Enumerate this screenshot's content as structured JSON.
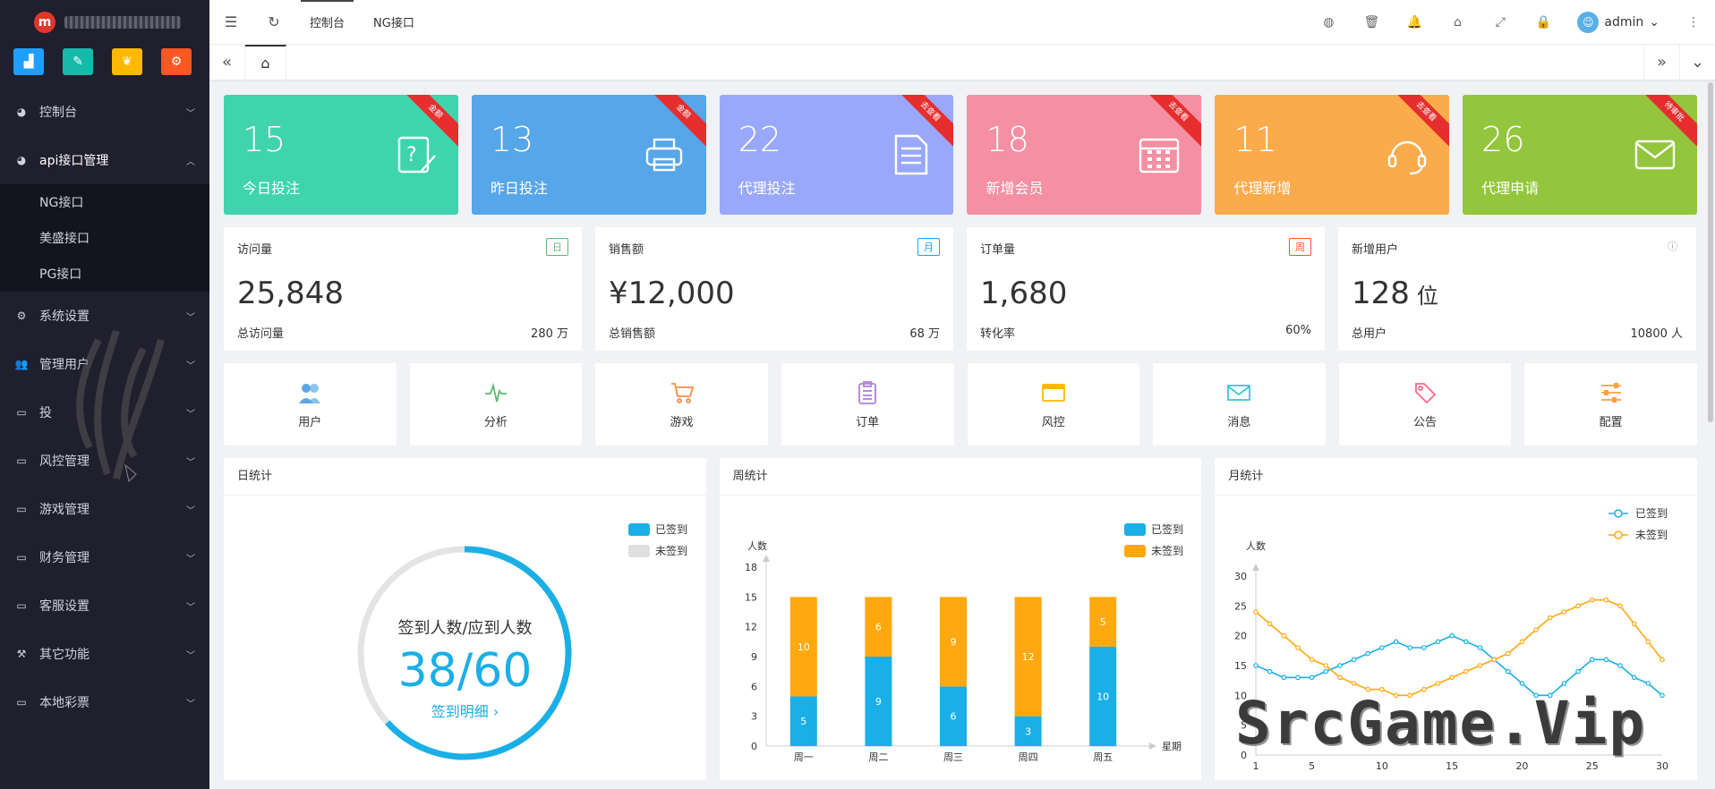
{
  "app": {
    "logo_letter": "m",
    "watermark": "SrcGame.Vip"
  },
  "quick_buttons": [
    {
      "icon": "chart-icon",
      "color": "#1e9fff"
    },
    {
      "icon": "edit-icon",
      "color": "#16baaa"
    },
    {
      "icon": "bear-icon",
      "color": "#ffb800"
    },
    {
      "icon": "settings-icon",
      "color": "#ff5722"
    }
  ],
  "sidebar": {
    "items": [
      {
        "label": "控制台",
        "icon": "dashboard-icon"
      },
      {
        "label": "api接口管理",
        "icon": "dashboard-icon",
        "open": true,
        "children": [
          "NG接口",
          "美盛接口",
          "PG接口"
        ]
      },
      {
        "label": "系统设置",
        "icon": "gear-icon"
      },
      {
        "label": "管理用户",
        "icon": "users-icon"
      },
      {
        "label": "投",
        "icon": "monitor-icon"
      },
      {
        "label": "风控管理",
        "icon": "monitor-icon"
      },
      {
        "label": "游戏管理",
        "icon": "monitor-icon"
      },
      {
        "label": "财务管理",
        "icon": "monitor-icon"
      },
      {
        "label": "客服设置",
        "icon": "monitor-icon"
      },
      {
        "label": "其它功能",
        "icon": "hammer-icon"
      },
      {
        "label": "本地彩票",
        "icon": "monitor-icon"
      }
    ]
  },
  "header": {
    "nav": [
      "控制台",
      "NG接口"
    ],
    "user": "admin"
  },
  "stats": [
    {
      "value": "15",
      "label": "今日投注",
      "ribbon": "金额",
      "color": "#3fd4ae"
    },
    {
      "value": "13",
      "label": "昨日投注",
      "ribbon": "金额",
      "color": "#56a6ea"
    },
    {
      "value": "22",
      "label": "代理投注",
      "ribbon": "去查看",
      "color": "#9aa8fb"
    },
    {
      "value": "18",
      "label": "新增会员",
      "ribbon": "去查看",
      "color": "#f58fa3"
    },
    {
      "value": "11",
      "label": "代理新增",
      "ribbon": "去查看",
      "color": "#fcab4c"
    },
    {
      "value": "26",
      "label": "代理申请",
      "ribbon": "待审批",
      "color": "#93c63c"
    }
  ],
  "metrics": [
    {
      "title": "访问量",
      "tag": "日",
      "tag_color": "#5fb878",
      "value": "25,848",
      "unit": "",
      "left": "总访问量",
      "right": "280 万"
    },
    {
      "title": "销售额",
      "tag": "月",
      "tag_color": "#1e9fff",
      "value": "¥12,000",
      "unit": "",
      "left": "总销售额",
      "right": "68 万"
    },
    {
      "title": "订单量",
      "tag": "周",
      "tag_color": "#ff5722",
      "value": "1,680",
      "unit": "",
      "left": "转化率",
      "right": "60%"
    },
    {
      "title": "新增用户",
      "tag": "ⓘ",
      "tag_color": "#999999",
      "value": "128",
      "unit": "位",
      "left": "总用户",
      "right": "10800 人"
    }
  ],
  "shortcuts": [
    {
      "label": "用户",
      "icon": "users-icon",
      "color": "#5aa9e6"
    },
    {
      "label": "分析",
      "icon": "pulse-icon",
      "color": "#5fb878"
    },
    {
      "label": "游戏",
      "icon": "cart-icon",
      "color": "#ff8a48"
    },
    {
      "label": "订单",
      "icon": "clipboard-icon",
      "color": "#b07fe0"
    },
    {
      "label": "风控",
      "icon": "card-icon",
      "color": "#ffb800"
    },
    {
      "label": "消息",
      "icon": "mail-icon",
      "color": "#3cc6d8"
    },
    {
      "label": "公告",
      "icon": "tag-icon",
      "color": "#f06b8a"
    },
    {
      "label": "配置",
      "icon": "sliders-icon",
      "color": "#ff9f43"
    }
  ],
  "daily": {
    "title": "日统计",
    "legend": [
      "已签到",
      "未签到"
    ],
    "ring_caption": "签到人数/应到人数",
    "ring_value": "38/60",
    "ring_link": "签到明细 ›",
    "signed": 38,
    "total": 60
  },
  "chart_data": [
    {
      "type": "bar",
      "title": "周统计",
      "ylabel": "人数",
      "xlabel": "星期",
      "categories": [
        "周一",
        "周二",
        "周三",
        "周四",
        "周五"
      ],
      "series": [
        {
          "name": "已签到",
          "values": [
            5,
            9,
            6,
            3,
            10
          ],
          "color": "#1aafe6"
        },
        {
          "name": "未签到",
          "values": [
            10,
            6,
            9,
            12,
            5
          ],
          "color": "#ffa810"
        }
      ],
      "ylim": [
        0,
        18
      ],
      "yticks": [
        0,
        3,
        6,
        9,
        12,
        15,
        18
      ],
      "stacked": true,
      "legend_position": "top-right"
    },
    {
      "type": "line",
      "title": "月统计",
      "ylabel": "人数",
      "x": [
        1,
        2,
        3,
        4,
        5,
        6,
        7,
        8,
        9,
        10,
        11,
        12,
        13,
        14,
        15,
        16,
        17,
        18,
        19,
        20,
        21,
        22,
        23,
        24,
        25,
        26,
        27,
        28,
        29,
        30
      ],
      "xticks": [
        "1",
        "5",
        "10",
        "15",
        "20",
        "25",
        "30"
      ],
      "series": [
        {
          "name": "已签到",
          "color": "#1aafe6",
          "values": [
            15,
            14,
            13,
            13,
            13,
            14,
            15,
            16,
            17,
            18,
            19,
            18,
            18,
            19,
            20,
            19,
            18,
            16,
            14,
            12,
            10,
            10,
            12,
            14,
            16,
            16,
            15,
            13,
            12,
            10
          ]
        },
        {
          "name": "未签到",
          "color": "#ffa810",
          "values": [
            24,
            22,
            20,
            18,
            16,
            15,
            13,
            12,
            11,
            11,
            10,
            10,
            11,
            12,
            13,
            14,
            15,
            16,
            17,
            19,
            21,
            23,
            24,
            25,
            26,
            26,
            25,
            22,
            19,
            16
          ]
        }
      ],
      "ylim": [
        0,
        30
      ],
      "yticks": [
        0,
        5,
        10,
        15,
        20,
        25,
        30
      ],
      "legend_position": "top-right"
    }
  ]
}
